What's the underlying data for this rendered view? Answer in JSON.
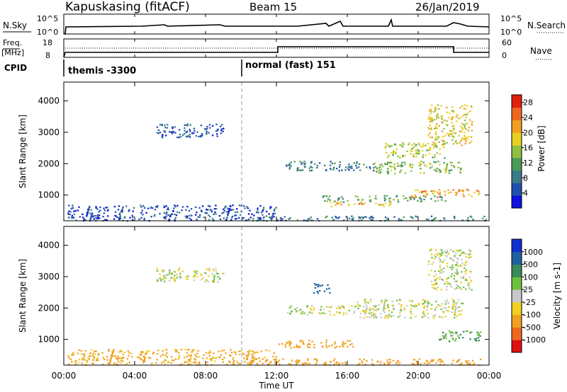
{
  "header": {
    "station": "Kapuskasing (fitACF)",
    "beam": "Beam 15",
    "date": "26/Jan/2019"
  },
  "nsky_panel": {
    "left_label": "N.Sky",
    "left_ticks": [
      "10^5",
      "10^0"
    ],
    "right_ticks": [
      "10^5",
      "10^0"
    ],
    "right_label": "N.Search"
  },
  "freq_panel": {
    "left_label_top": "Freq.",
    "left_label_unit": "[MHz]",
    "left_ticks": [
      "18",
      "8"
    ],
    "right_ticks": [
      "60",
      "0"
    ],
    "right_label": "Nave"
  },
  "cpid_panel": {
    "label": "CPID",
    "segments": [
      {
        "text": "themis -3300",
        "start_hour": 0
      },
      {
        "text": "normal (fast) 151",
        "start_hour": 10
      }
    ]
  },
  "time_axis": {
    "title": "Time UT",
    "ticks": [
      "00:00",
      "04:00",
      "08:00",
      "12:00",
      "16:00",
      "20:00",
      "00:00"
    ]
  },
  "chart_data": [
    {
      "type": "heatmap",
      "panel": "power",
      "title": "",
      "xlabel": "Time UT",
      "ylabel": "Slant Range [km]",
      "xlim": [
        0,
        24
      ],
      "ylim": [
        180,
        4600
      ],
      "y_ticks": [
        "1000",
        "2000",
        "3000",
        "4000"
      ],
      "y_tick_values": [
        1000,
        2000,
        3000,
        4000
      ],
      "colorbar": {
        "label": "Power [dB]",
        "ticks": [
          "4",
          "8",
          "12",
          "16",
          "20",
          "24",
          "28"
        ],
        "tick_values": [
          4,
          8,
          12,
          16,
          20,
          24,
          28
        ],
        "range": [
          0,
          30
        ],
        "colors": [
          "#1010e0",
          "#2050b0",
          "#3a7a8a",
          "#4a9a58",
          "#90c040",
          "#e8d020",
          "#f0a020",
          "#f06820",
          "#e02010"
        ]
      },
      "scatter_regions": [
        {
          "t0": 5.2,
          "t1": 9.0,
          "r0": 2850,
          "r1": 3300,
          "power": 6
        },
        {
          "t0": 0.2,
          "t1": 12.0,
          "r0": 200,
          "r1": 700,
          "power": 5
        },
        {
          "t0": 10.0,
          "t1": 23.8,
          "r0": 200,
          "r1": 350,
          "power": 8
        },
        {
          "t0": 12.5,
          "t1": 17.5,
          "r0": 1800,
          "r1": 2100,
          "power": 8
        },
        {
          "t0": 14.5,
          "t1": 21.5,
          "r0": 800,
          "r1": 1000,
          "power": 12
        },
        {
          "t0": 15.0,
          "t1": 18.5,
          "r0": 650,
          "r1": 800,
          "power": 20
        },
        {
          "t0": 17.5,
          "t1": 22.5,
          "r0": 1700,
          "r1": 2100,
          "power": 14
        },
        {
          "t0": 18.0,
          "t1": 21.5,
          "r0": 2200,
          "r1": 2700,
          "power": 16
        },
        {
          "t0": 19.5,
          "t1": 23.5,
          "r0": 950,
          "r1": 1200,
          "power": 22
        },
        {
          "t0": 20.5,
          "t1": 23.0,
          "r0": 2600,
          "r1": 3900,
          "power": 18
        }
      ]
    },
    {
      "type": "heatmap",
      "panel": "velocity",
      "title": "",
      "xlabel": "Time UT",
      "ylabel": "Slant Range [km]",
      "xlim": [
        0,
        24
      ],
      "ylim": [
        180,
        4600
      ],
      "y_ticks": [
        "1000",
        "2000",
        "3000",
        "4000"
      ],
      "y_tick_values": [
        1000,
        2000,
        3000,
        4000
      ],
      "colorbar": {
        "label": "Velocity [m s-1]",
        "ticks": [
          "1000",
          "500",
          "100",
          "25",
          "-25",
          "-100",
          "-500",
          "-1000"
        ],
        "colors": [
          "#1030d0",
          "#2060a0",
          "#3a8a5a",
          "#70c040",
          "#c8c8c8",
          "#f0d020",
          "#f0a020",
          "#f06820",
          "#e01010"
        ]
      },
      "scatter_regions": [
        {
          "t0": 5.2,
          "t1": 9.0,
          "r0": 2850,
          "r1": 3300,
          "velocity": 0
        },
        {
          "t0": 0.2,
          "t1": 12.0,
          "r0": 200,
          "r1": 700,
          "velocity": -150
        },
        {
          "t0": 10.0,
          "t1": 23.8,
          "r0": 200,
          "r1": 400,
          "velocity": -200
        },
        {
          "t0": 12.5,
          "t1": 17.5,
          "r0": 1800,
          "r1": 2100,
          "velocity": 0
        },
        {
          "t0": 12.0,
          "t1": 16.5,
          "r0": 750,
          "r1": 1000,
          "velocity": -300
        },
        {
          "t0": 16.5,
          "t1": 22.5,
          "r0": 1700,
          "r1": 2300,
          "velocity": 0
        },
        {
          "t0": 14.0,
          "t1": 15.0,
          "r0": 2500,
          "r1": 2800,
          "velocity": 600
        },
        {
          "t0": 20.5,
          "t1": 23.0,
          "r0": 2600,
          "r1": 3900,
          "velocity": 0
        },
        {
          "t0": 21.0,
          "t1": 23.5,
          "r0": 950,
          "r1": 1300,
          "velocity": 100
        }
      ]
    }
  ]
}
